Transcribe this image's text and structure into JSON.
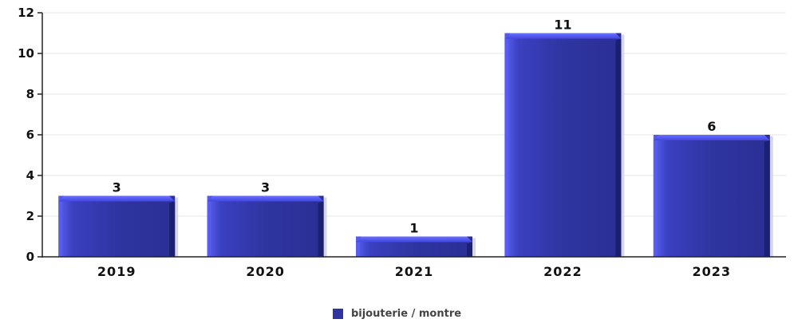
{
  "chart_data": {
    "type": "bar",
    "categories": [
      "2019",
      "2020",
      "2021",
      "2022",
      "2023"
    ],
    "series": [
      {
        "name": "bijouterie / montre",
        "values": [
          3,
          3,
          1,
          11,
          6
        ]
      }
    ],
    "data_labels": [
      "3",
      "3",
      "1",
      "11",
      "6"
    ],
    "y_ticks": [
      "0",
      "2",
      "4",
      "6",
      "8",
      "10",
      "12"
    ],
    "ylim": [
      0,
      12
    ],
    "grid": true,
    "legend_position": "bottom-center",
    "colors": {
      "bar_main": "#2f35a0",
      "bar_light": "#5a60f0",
      "bar_dark": "#1c2070",
      "grid": "#e4e4e4",
      "axis": "#222222"
    }
  }
}
